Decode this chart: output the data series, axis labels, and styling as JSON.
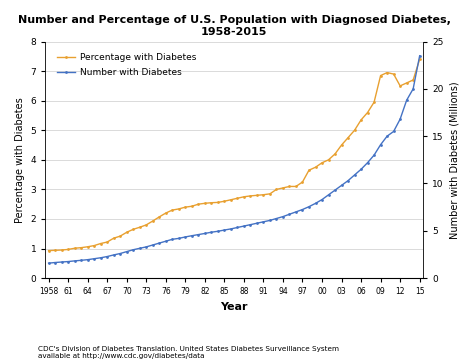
{
  "title": "Number and Percentage of U.S. Population with Diagnosed Diabetes,\n1958-2015",
  "xlabel": "Year",
  "ylabel_left": "Percentage with Diabetes",
  "ylabel_right": "Number with Diabetes (Millions)",
  "footnote": "CDC's Division of Diabetes Translation. United States Diabetes Surveillance System\navailable at http://www.cdc.gov/diabetes/data",
  "legend_pct": "Percentage with Diabetes",
  "legend_num": "Number with Diabetes",
  "pct_color": "#E8A030",
  "num_color": "#4472C4",
  "years": [
    1958,
    1959,
    1960,
    1961,
    1962,
    1963,
    1964,
    1965,
    1966,
    1967,
    1968,
    1969,
    1970,
    1971,
    1972,
    1973,
    1974,
    1975,
    1976,
    1977,
    1978,
    1979,
    1980,
    1981,
    1982,
    1983,
    1984,
    1985,
    1986,
    1987,
    1988,
    1989,
    1990,
    1991,
    1992,
    1993,
    1994,
    1995,
    1996,
    1997,
    1998,
    1999,
    2000,
    2001,
    2002,
    2003,
    2004,
    2005,
    2006,
    2007,
    2008,
    2009,
    2010,
    2011,
    2012,
    2013,
    2014,
    2015
  ],
  "percentage": [
    0.93,
    0.94,
    0.95,
    0.97,
    1.01,
    1.03,
    1.06,
    1.1,
    1.17,
    1.22,
    1.35,
    1.42,
    1.55,
    1.65,
    1.72,
    1.8,
    1.93,
    2.07,
    2.2,
    2.3,
    2.34,
    2.4,
    2.43,
    2.5,
    2.53,
    2.55,
    2.56,
    2.6,
    2.65,
    2.7,
    2.75,
    2.78,
    2.8,
    2.82,
    2.85,
    3.0,
    3.05,
    3.1,
    3.1,
    3.25,
    3.65,
    3.75,
    3.9,
    4.0,
    4.2,
    4.5,
    4.75,
    5.0,
    5.35,
    5.6,
    5.95,
    6.85,
    6.95,
    6.9,
    6.5,
    6.6,
    6.7,
    7.4
  ],
  "numbers_millions": [
    1.58,
    1.65,
    1.7,
    1.75,
    1.82,
    1.88,
    1.95,
    2.05,
    2.15,
    2.28,
    2.45,
    2.6,
    2.8,
    3.0,
    3.15,
    3.3,
    3.5,
    3.7,
    3.9,
    4.1,
    4.2,
    4.35,
    4.48,
    4.6,
    4.72,
    4.85,
    4.95,
    5.08,
    5.2,
    5.35,
    5.5,
    5.65,
    5.8,
    5.95,
    6.1,
    6.3,
    6.5,
    6.75,
    7.0,
    7.25,
    7.55,
    7.9,
    8.3,
    8.8,
    9.3,
    9.8,
    10.3,
    10.9,
    11.5,
    12.2,
    13.0,
    14.1,
    15.0,
    15.5,
    16.8,
    18.8,
    20.0,
    23.5
  ],
  "ylim_left": [
    0,
    8
  ],
  "ylim_right": [
    0,
    25
  ],
  "yticks_left": [
    0,
    1,
    2,
    3,
    4,
    5,
    6,
    7,
    8
  ],
  "yticks_right": [
    0,
    5,
    10,
    15,
    20,
    25
  ],
  "xtick_labels": [
    "1958",
    "61",
    "64",
    "67",
    "70",
    "73",
    "76",
    "79",
    "82",
    "85",
    "88",
    "91",
    "94",
    "97",
    "00",
    "03",
    "06",
    "09",
    "12",
    "15"
  ],
  "xtick_positions": [
    1958,
    1961,
    1964,
    1967,
    1970,
    1973,
    1976,
    1979,
    1982,
    1985,
    1988,
    1991,
    1994,
    1997,
    2000,
    2003,
    2006,
    2009,
    2012,
    2015
  ]
}
